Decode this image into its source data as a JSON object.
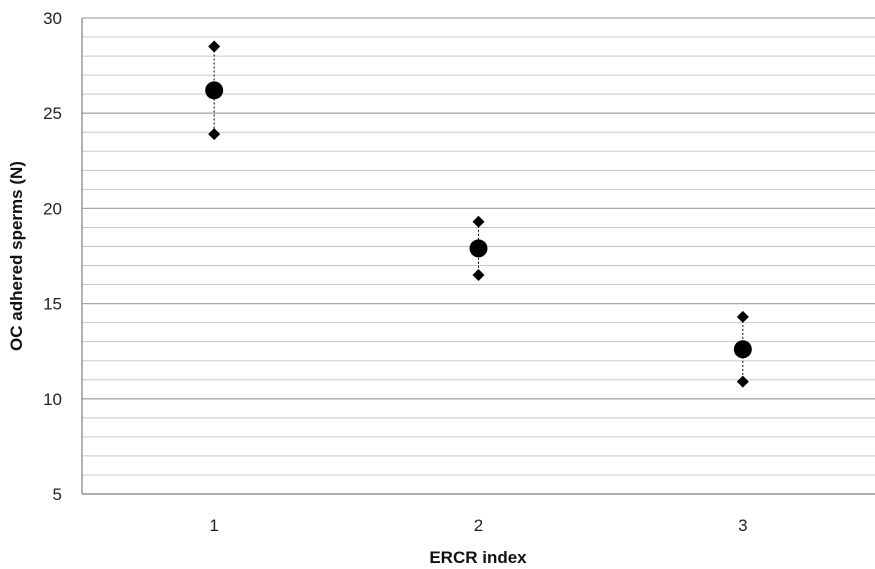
{
  "chart_data": {
    "type": "scatter",
    "title": "",
    "xlabel": "ERCR index",
    "ylabel": "OC adhered sperms (N)",
    "x_ticks": [
      "1",
      "2",
      "3"
    ],
    "y_ticks": [
      "5",
      "10",
      "15",
      "20",
      "25",
      "30"
    ],
    "xlim": [
      0.5,
      3.5
    ],
    "ylim": [
      5,
      30
    ],
    "grid": "horizontal major and minor",
    "series": [
      {
        "role": "mean",
        "marker": "circle",
        "x": [
          1,
          2,
          3
        ],
        "y": [
          26.2,
          17.9,
          12.6
        ]
      },
      {
        "role": "upper",
        "marker": "diamond",
        "x": [
          1,
          2,
          3
        ],
        "y": [
          28.5,
          19.3,
          14.3
        ]
      },
      {
        "role": "lower",
        "marker": "diamond",
        "x": [
          1,
          2,
          3
        ],
        "y": [
          23.9,
          16.5,
          10.9
        ]
      }
    ],
    "colors": {
      "marker": "#000000",
      "grid": "#c8c8c8",
      "axis": "#8c8c8c"
    }
  }
}
